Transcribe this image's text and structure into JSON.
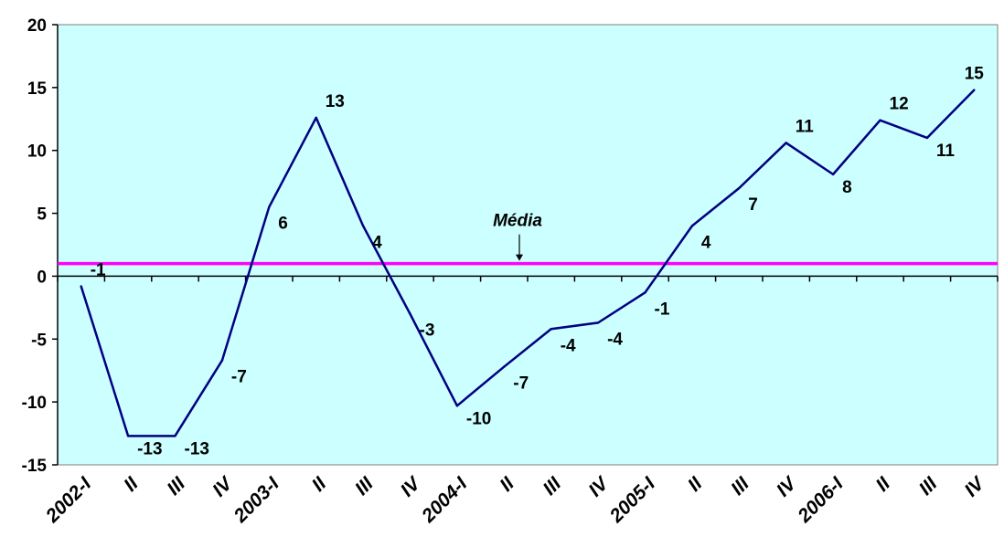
{
  "chart_data": {
    "type": "line",
    "categories": [
      "2002-I",
      "II",
      "III",
      "IV",
      "2003-I",
      "II",
      "III",
      "IV",
      "2004-I",
      "II",
      "III",
      "IV",
      "2005-I",
      "II",
      "III",
      "IV",
      "2006-I",
      "II",
      "III",
      "IV"
    ],
    "series": [
      {
        "values": [
          -0.8,
          -12.7,
          -12.7,
          -6.7,
          5.5,
          12.6,
          4.0,
          -3.0,
          -10.3,
          -7.2,
          -4.2,
          -3.7,
          -1.3,
          4.0,
          7.0,
          10.6,
          8.1,
          12.4,
          11.0,
          14.8
        ],
        "labels": [
          "-1",
          "-13",
          "-13",
          "-7",
          "6",
          "13",
          "4",
          "-3",
          "-10",
          "-7",
          "-4",
          "-4",
          "-1",
          "4",
          "7",
          "11",
          "8",
          "12",
          "11",
          "15"
        ],
        "color": "#000080"
      }
    ],
    "reference_line": {
      "label": "Média",
      "value": 1.0,
      "color": "#ff00ff"
    },
    "ylim": [
      -15,
      20
    ],
    "yticks": [
      -15,
      -10,
      -5,
      0,
      5,
      10,
      15,
      20
    ],
    "xlabel": "",
    "ylabel": "",
    "title": "",
    "grid": false,
    "plot_background": "#ccffff"
  }
}
